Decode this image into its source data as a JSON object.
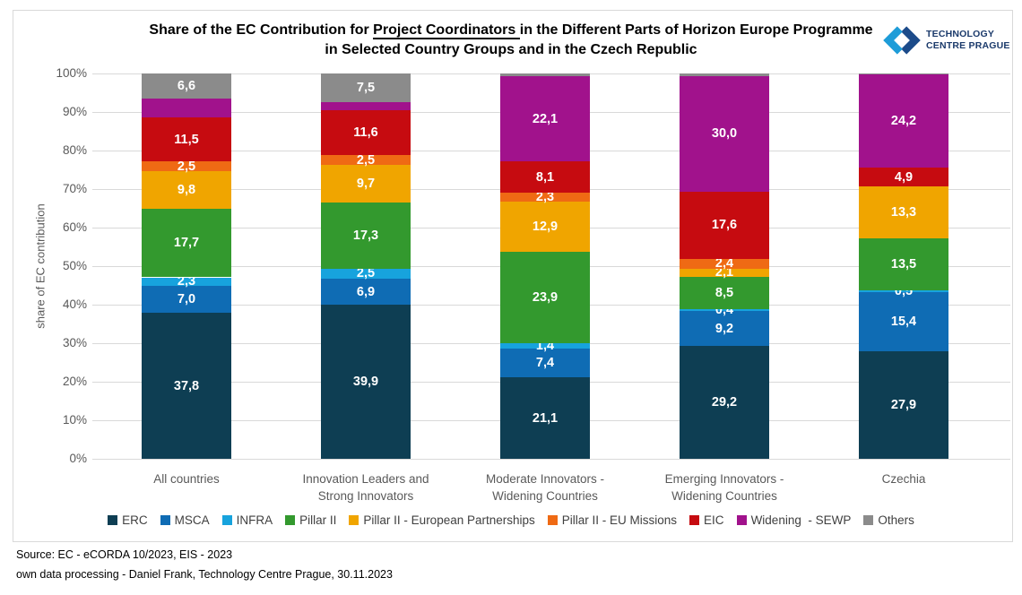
{
  "header": {
    "title_pre": "Share of the EC Contribution for ",
    "title_underlined": "Project Coordinators ",
    "title_post": "in the Different Parts of Horizon Europe Programme",
    "title_line2": "in Selected Country Groups and in the Czech Republic"
  },
  "logo": {
    "line1": "TECHNOLOGY",
    "line2": "CENTRE PRAGUE",
    "mark_dark_color": "#1c4b8a",
    "mark_light_color": "#1e9cd8",
    "text_color": "#1b3a6b"
  },
  "chart_data": {
    "type": "bar",
    "stacked": true,
    "ylabel": "share of EC contribution",
    "ylim": [
      0,
      100
    ],
    "yticks": [
      "0%",
      "10%",
      "20%",
      "30%",
      "40%",
      "50%",
      "60%",
      "70%",
      "80%",
      "90%",
      "100%"
    ],
    "grid": true,
    "legend_position": "bottom",
    "grid_color": "#d9d9d9",
    "categories": [
      [
        "All countries"
      ],
      [
        "Innovation Leaders and",
        "Strong Innovators"
      ],
      [
        "Moderate Innovators -",
        "Widening Countries"
      ],
      [
        "Emerging Innovators -",
        "Widening Countries"
      ],
      [
        "Czechia"
      ]
    ],
    "series": [
      {
        "name": "ERC",
        "color": "#0e3e53",
        "values": [
          37.8,
          39.9,
          21.1,
          29.2,
          27.9
        ],
        "labels": [
          "37,8",
          "39,9",
          "21,1",
          "29,2",
          "27,9"
        ]
      },
      {
        "name": "MSCA",
        "color": "#0f6cb4",
        "values": [
          7.0,
          6.9,
          7.4,
          9.2,
          15.4
        ],
        "labels": [
          "7,0",
          "6,9",
          "7,4",
          "9,2",
          "15,4"
        ]
      },
      {
        "name": "INFRA",
        "color": "#17a3dd",
        "values": [
          2.3,
          2.5,
          1.4,
          0.4,
          0.5
        ],
        "labels": [
          "2,3",
          "2,5",
          "1,4",
          "0,4",
          "0,5"
        ]
      },
      {
        "name": "Pillar II",
        "color": "#33992e",
        "values": [
          17.7,
          17.3,
          23.9,
          8.5,
          13.5
        ],
        "labels": [
          "17,7",
          "17,3",
          "23,9",
          "8,5",
          "13,5"
        ]
      },
      {
        "name": "Pillar II - European Partnerships",
        "color": "#f0a500",
        "values": [
          9.8,
          9.7,
          12.9,
          2.1,
          13.3
        ],
        "labels": [
          "9,8",
          "9,7",
          "12,9",
          "2,1",
          "13,3"
        ]
      },
      {
        "name": "Pillar II - EU Missions",
        "color": "#ef6a14",
        "values": [
          2.5,
          2.5,
          2.3,
          2.4,
          0
        ],
        "labels": [
          "2,5",
          "2,5",
          "2,3",
          "2,4",
          ""
        ]
      },
      {
        "name": "EIC",
        "color": "#c60b10",
        "values": [
          11.5,
          11.6,
          8.1,
          17.6,
          4.9
        ],
        "labels": [
          "11,5",
          "11,6",
          "8,1",
          "17,6",
          "4,9"
        ]
      },
      {
        "name": "Widening  - SEWP",
        "color": "#a1128c",
        "values": [
          4.8,
          2.1,
          22.1,
          30.0,
          24.2
        ],
        "labels": [
          "",
          "",
          "22,1",
          "30,0",
          "24,2"
        ]
      },
      {
        "name": "Others",
        "color": "#8b8b8b",
        "values": [
          6.6,
          7.5,
          0.8,
          0.6,
          0.3
        ],
        "labels": [
          "6,6",
          "7,5",
          "",
          "",
          ""
        ]
      }
    ]
  },
  "footer": {
    "line1": "Source: EC - eCORDA 10/2023, EIS - 2023",
    "line2": "own data processing - Daniel Frank, Technology Centre Prague, 30.11.2023"
  }
}
